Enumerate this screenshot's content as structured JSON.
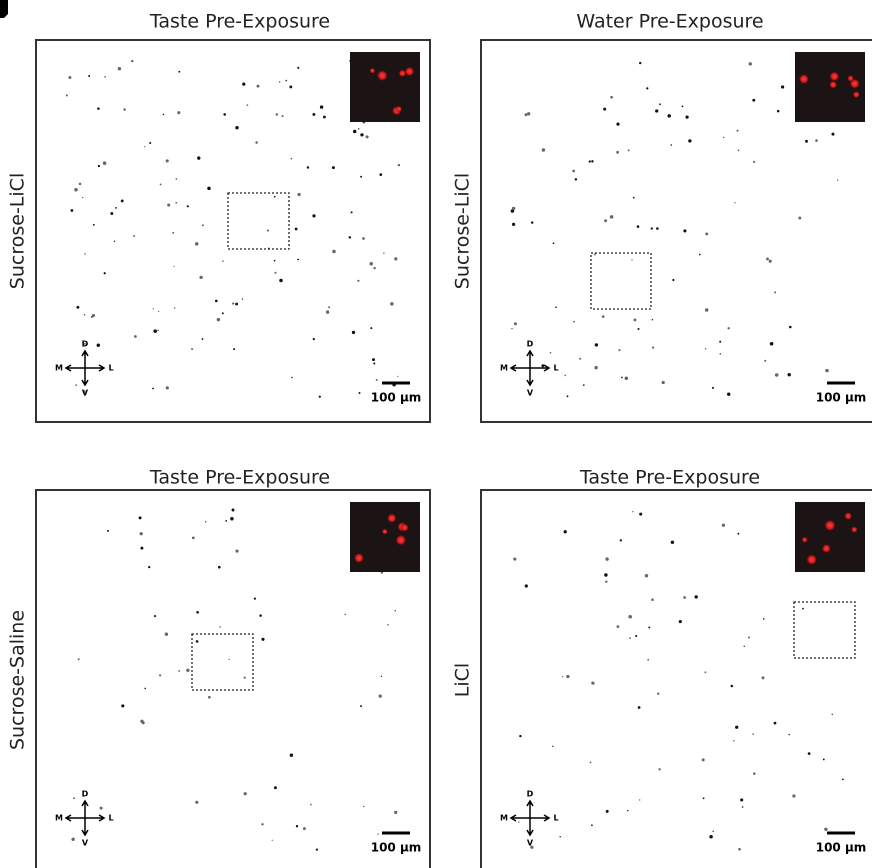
{
  "panels": [
    {
      "title": "Taste Pre-Exposure",
      "side_label": "Sucrose-LiCl",
      "scale_bar": "100 µm",
      "compass": {
        "d": "D",
        "v": "V",
        "m": "M",
        "l": "L"
      }
    },
    {
      "title": "Water Pre-Exposure",
      "side_label": "Sucrose-LiCl",
      "scale_bar": "100 µm",
      "compass": {
        "d": "D",
        "v": "V",
        "m": "M",
        "l": "L"
      }
    },
    {
      "title": "Taste Pre-Exposure",
      "side_label": "Sucrose-Saline",
      "scale_bar": "100 µm",
      "compass": {
        "d": "D",
        "v": "V",
        "m": "M",
        "l": "L"
      }
    },
    {
      "title": "Taste Pre-Exposure",
      "side_label": "LiCl",
      "scale_bar": "100 µm",
      "compass": {
        "d": "D",
        "v": "V",
        "m": "M",
        "l": "L"
      }
    }
  ]
}
